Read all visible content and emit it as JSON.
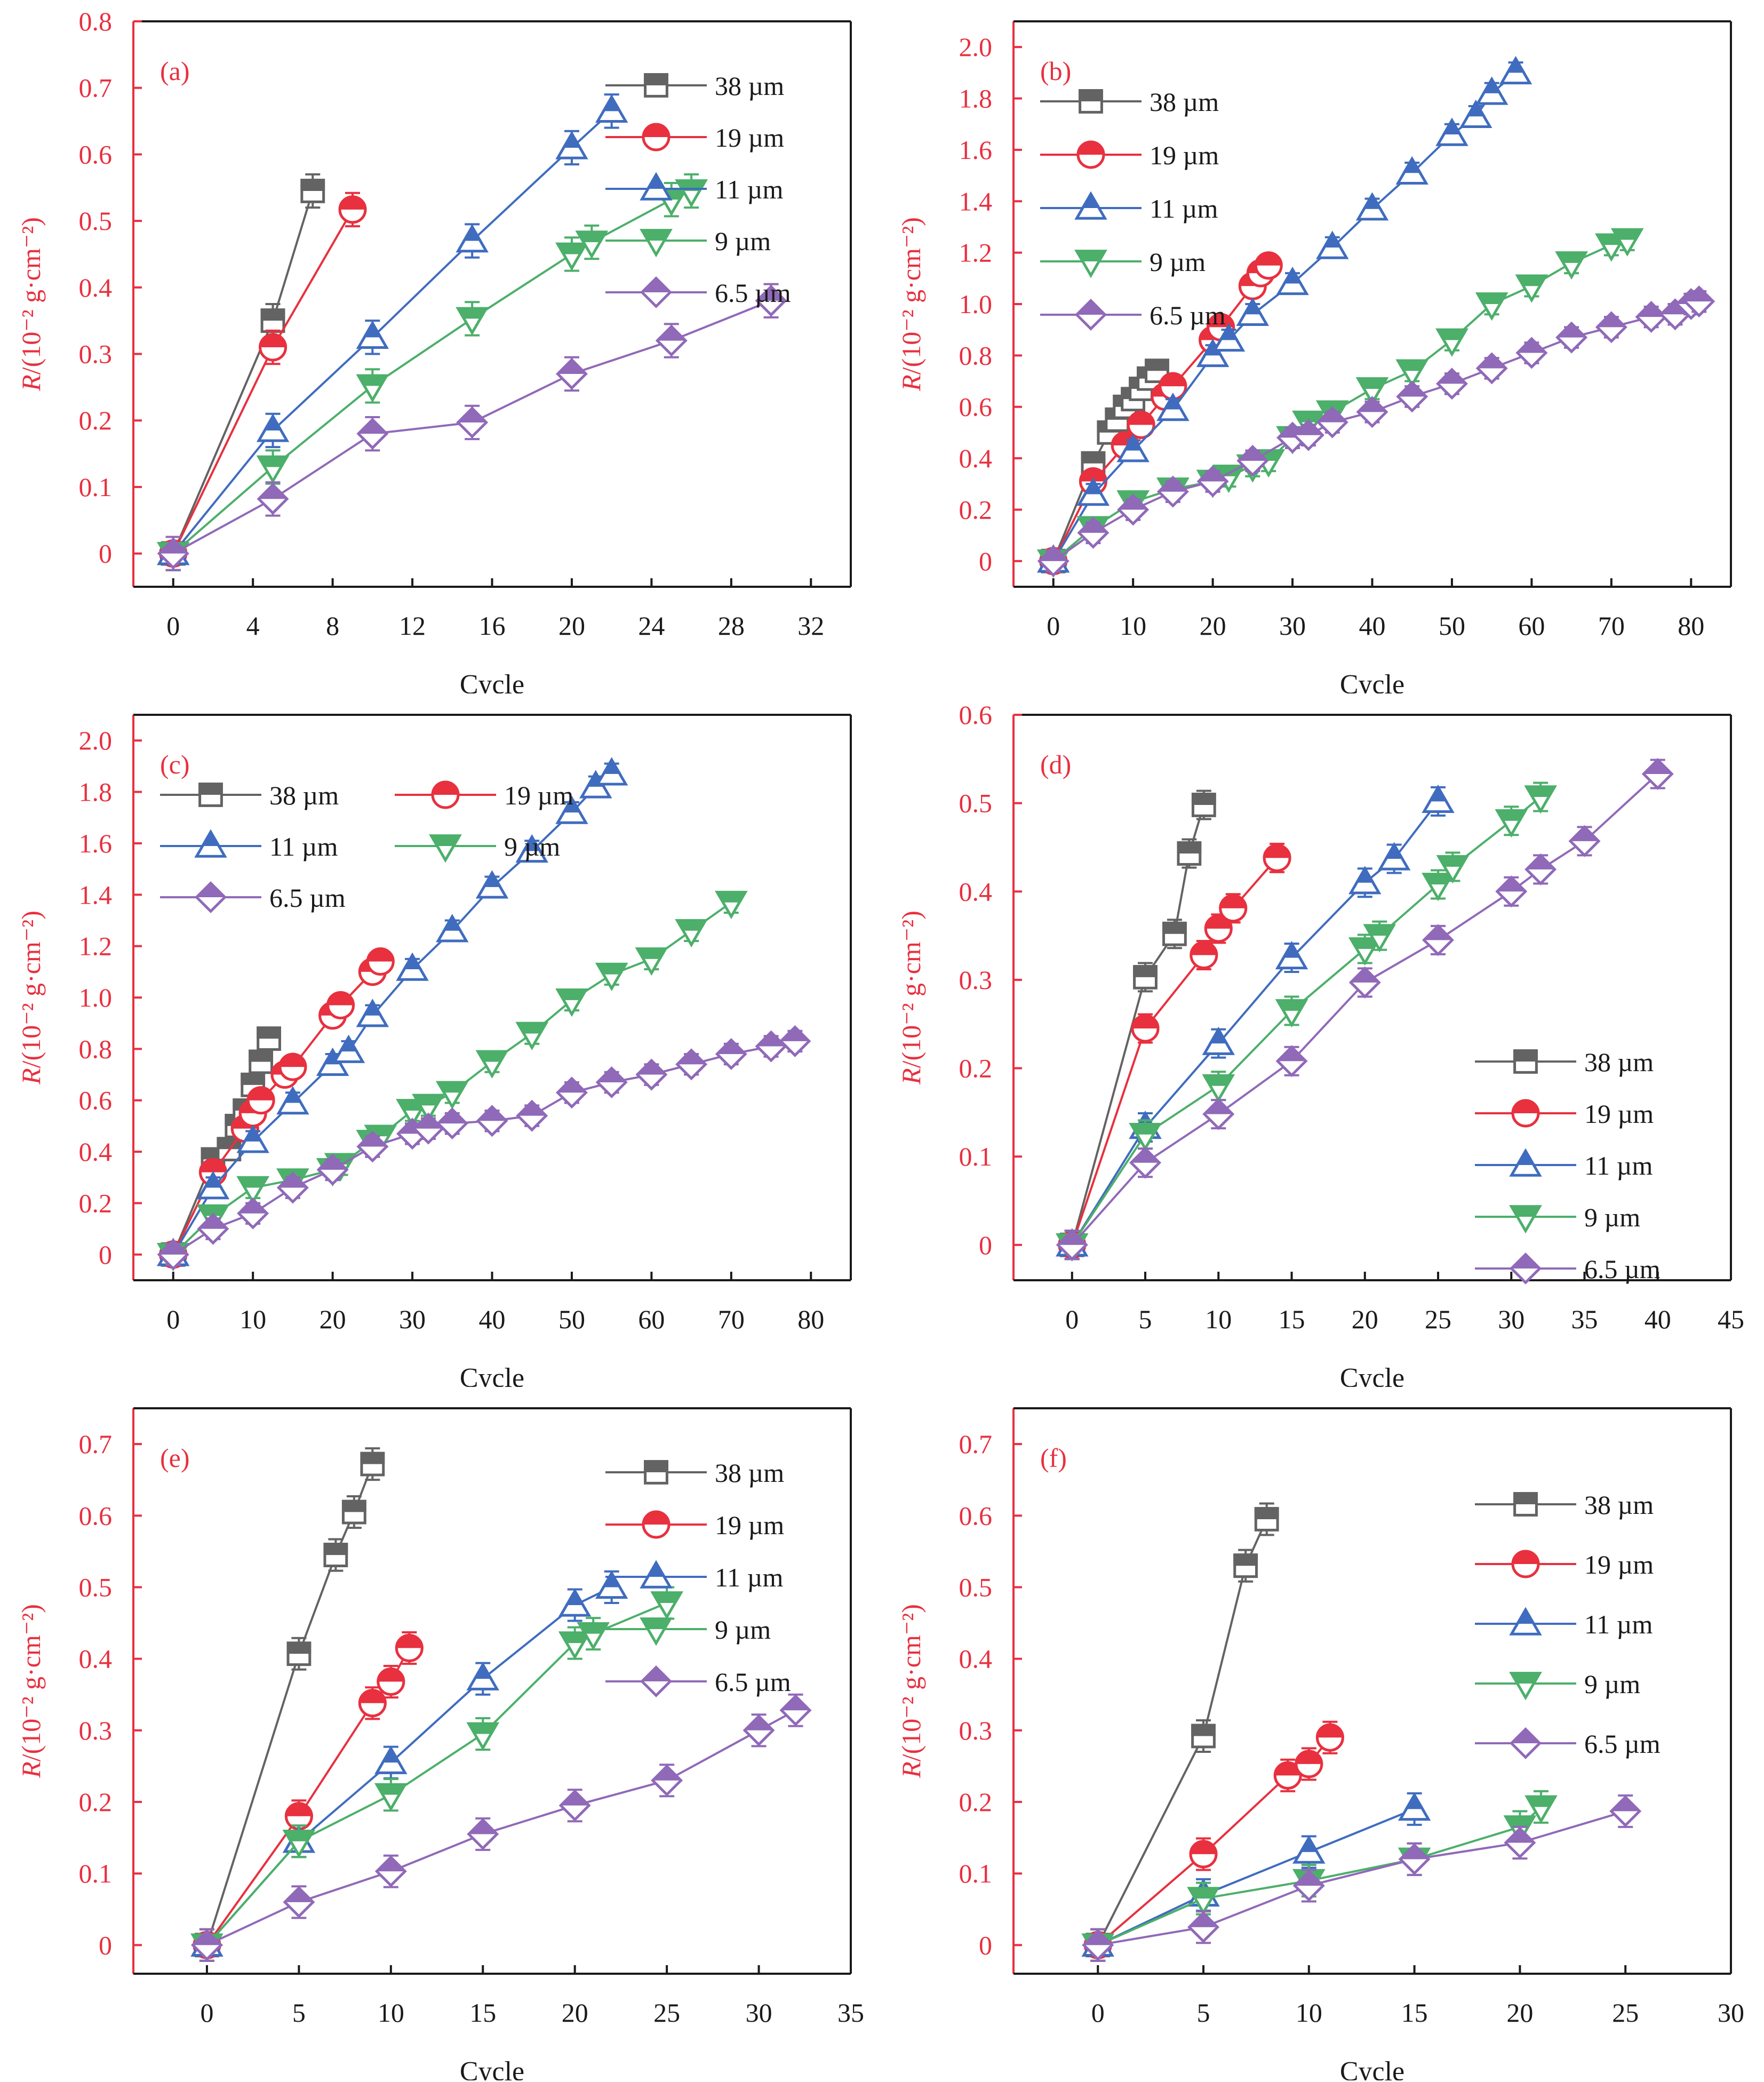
{
  "colors": {
    "38 µm": "#636363",
    "19 µm": "#e8303f",
    "11 µm": "#3f6cbf",
    "9 µm": "#4caf6a",
    "6.5 µm": "#9069b8",
    "axis_label": "#e8303f",
    "axis": "#1a1a1a"
  },
  "series_names": [
    "38 µm",
    "19 µm",
    "11 µm",
    "9 µm",
    "6.5 µm"
  ],
  "chart_data": [
    {
      "type": "line",
      "panel": "(a)",
      "xlabel": "Cycle",
      "ylabel": "R/(10⁻² g·cm⁻²)",
      "xlim": [
        -2,
        34
      ],
      "ylim": [
        -0.05,
        0.8
      ],
      "xticks": [
        0,
        4,
        8,
        12,
        16,
        20,
        24,
        28,
        32
      ],
      "yticks": [
        0,
        0.1,
        0.2,
        0.3,
        0.4,
        0.5,
        0.6,
        0.7,
        0.8
      ],
      "ytick_labels": [
        "0",
        "0.1",
        "0.2",
        "0.3",
        "0.4",
        "0.5",
        "0.6",
        "0.7",
        "0.8"
      ],
      "legend": "top-right",
      "legend_cols": 1,
      "error": 0.025,
      "series": [
        {
          "name": "38 µm",
          "x": [
            0,
            5,
            7
          ],
          "y": [
            0,
            0.35,
            0.545
          ]
        },
        {
          "name": "19 µm",
          "x": [
            0,
            5,
            9
          ],
          "y": [
            0,
            0.31,
            0.517
          ]
        },
        {
          "name": "11 µm",
          "x": [
            0,
            5,
            10,
            15,
            20,
            22
          ],
          "y": [
            0,
            0.185,
            0.325,
            0.47,
            0.61,
            0.665
          ]
        },
        {
          "name": "9 µm",
          "x": [
            0,
            5,
            10,
            15,
            20,
            21,
            25,
            26
          ],
          "y": [
            0,
            0.13,
            0.252,
            0.353,
            0.45,
            0.468,
            0.532,
            0.545
          ]
        },
        {
          "name": "6.5 µm",
          "x": [
            0,
            5,
            10,
            15,
            20,
            25,
            30
          ],
          "y": [
            0,
            0.082,
            0.18,
            0.197,
            0.27,
            0.32,
            0.38
          ]
        }
      ]
    },
    {
      "type": "line",
      "panel": "(b)",
      "xlabel": "Cycle",
      "ylabel": "R/(10⁻² g·cm⁻²)",
      "xlim": [
        -5,
        85
      ],
      "ylim": [
        -0.1,
        2.1
      ],
      "xticks": [
        0,
        10,
        20,
        30,
        40,
        50,
        60,
        70,
        80
      ],
      "yticks": [
        0,
        0.2,
        0.4,
        0.6,
        0.8,
        1.0,
        1.2,
        1.4,
        1.6,
        1.8,
        2.0
      ],
      "ytick_labels": [
        "0",
        "0.2",
        "0.4",
        "0.6",
        "0.8",
        "1.0",
        "1.2",
        "1.4",
        "1.6",
        "1.8",
        "2.0"
      ],
      "legend": "top-left",
      "legend_cols": 1,
      "error": 0.04,
      "series": [
        {
          "name": "38 µm",
          "x": [
            0,
            5,
            7,
            8,
            9,
            10,
            11,
            12,
            13
          ],
          "y": [
            0,
            0.38,
            0.5,
            0.55,
            0.6,
            0.63,
            0.67,
            0.71,
            0.74
          ]
        },
        {
          "name": "19 µm",
          "x": [
            0,
            5,
            9,
            11,
            14,
            15,
            20,
            21,
            25,
            26,
            27
          ],
          "y": [
            0,
            0.31,
            0.45,
            0.53,
            0.64,
            0.68,
            0.86,
            0.91,
            1.07,
            1.12,
            1.15
          ]
        },
        {
          "name": "11 µm",
          "x": [
            0,
            5,
            10,
            15,
            20,
            22,
            25,
            30,
            35,
            40,
            45,
            50,
            53,
            55,
            58
          ],
          "y": [
            0,
            0.26,
            0.43,
            0.59,
            0.8,
            0.86,
            0.96,
            1.08,
            1.22,
            1.37,
            1.51,
            1.66,
            1.73,
            1.82,
            1.9
          ]
        },
        {
          "name": "9 µm",
          "x": [
            0,
            5,
            10,
            15,
            20,
            22,
            25,
            27,
            30,
            32,
            35,
            40,
            45,
            50,
            55,
            60,
            65,
            70,
            72
          ],
          "y": [
            0,
            0.13,
            0.23,
            0.28,
            0.31,
            0.33,
            0.37,
            0.39,
            0.48,
            0.54,
            0.58,
            0.67,
            0.74,
            0.86,
            1.0,
            1.07,
            1.16,
            1.23,
            1.25
          ]
        },
        {
          "name": "6.5 µm",
          "x": [
            0,
            5,
            10,
            15,
            20,
            25,
            30,
            32,
            35,
            40,
            45,
            50,
            55,
            60,
            65,
            70,
            75,
            78,
            80,
            81
          ],
          "y": [
            0,
            0.11,
            0.2,
            0.27,
            0.31,
            0.39,
            0.48,
            0.49,
            0.54,
            0.58,
            0.64,
            0.69,
            0.75,
            0.81,
            0.87,
            0.91,
            0.95,
            0.96,
            1.0,
            1.01
          ]
        }
      ]
    },
    {
      "type": "line",
      "panel": "(c)",
      "xlabel": "Cycle",
      "ylabel": "R/(10⁻² g·cm⁻²)",
      "xlim": [
        -5,
        85
      ],
      "ylim": [
        -0.1,
        2.1
      ],
      "xticks": [
        0,
        10,
        20,
        30,
        40,
        50,
        60,
        70,
        80
      ],
      "yticks": [
        0,
        0.2,
        0.4,
        0.6,
        0.8,
        1.0,
        1.2,
        1.4,
        1.6,
        1.8,
        2.0
      ],
      "ytick_labels": [
        "0",
        "0.2",
        "0.4",
        "0.6",
        "0.8",
        "1.0",
        "1.2",
        "1.4",
        "1.6",
        "1.8",
        "2.0"
      ],
      "legend": "top-left",
      "legend_cols": 2,
      "error": 0.04,
      "series": [
        {
          "name": "38 µm",
          "x": [
            0,
            5,
            7,
            8,
            9,
            10,
            11,
            12
          ],
          "y": [
            0,
            0.37,
            0.41,
            0.5,
            0.56,
            0.66,
            0.75,
            0.84
          ]
        },
        {
          "name": "19 µm",
          "x": [
            0,
            5,
            9,
            10,
            11,
            14,
            15,
            20,
            21,
            25,
            26
          ],
          "y": [
            0,
            0.32,
            0.49,
            0.55,
            0.6,
            0.7,
            0.73,
            0.93,
            0.97,
            1.1,
            1.14
          ]
        },
        {
          "name": "11 µm",
          "x": [
            0,
            5,
            10,
            15,
            20,
            22,
            25,
            30,
            35,
            40,
            45,
            50,
            53,
            55
          ],
          "y": [
            0,
            0.26,
            0.44,
            0.59,
            0.74,
            0.79,
            0.93,
            1.11,
            1.26,
            1.43,
            1.57,
            1.72,
            1.82,
            1.87
          ]
        },
        {
          "name": "9 µm",
          "x": [
            0,
            5,
            10,
            15,
            20,
            21,
            25,
            26,
            30,
            32,
            35,
            40,
            45,
            50,
            55,
            60,
            65,
            70
          ],
          "y": [
            0,
            0.15,
            0.26,
            0.29,
            0.33,
            0.35,
            0.44,
            0.46,
            0.56,
            0.58,
            0.63,
            0.75,
            0.86,
            0.99,
            1.09,
            1.15,
            1.26,
            1.37
          ]
        },
        {
          "name": "6.5 µm",
          "x": [
            0,
            5,
            10,
            15,
            20,
            25,
            30,
            32,
            35,
            40,
            45,
            50,
            55,
            60,
            65,
            70,
            75,
            78
          ],
          "y": [
            0,
            0.1,
            0.16,
            0.26,
            0.33,
            0.42,
            0.47,
            0.49,
            0.51,
            0.52,
            0.54,
            0.63,
            0.67,
            0.7,
            0.74,
            0.78,
            0.81,
            0.83
          ]
        }
      ]
    },
    {
      "type": "line",
      "panel": "(d)",
      "xlabel": "Cycle",
      "ylabel": "R/(10⁻² g·cm⁻²)",
      "xlim": [
        -4,
        45
      ],
      "ylim": [
        -0.04,
        0.6
      ],
      "xticks": [
        0,
        5,
        10,
        15,
        20,
        25,
        30,
        35,
        40,
        45
      ],
      "yticks": [
        0,
        0.1,
        0.2,
        0.3,
        0.4,
        0.5,
        0.6
      ],
      "ytick_labels": [
        "0",
        "0.1",
        "0.2",
        "0.3",
        "0.4",
        "0.5",
        "0.6"
      ],
      "legend": "right",
      "legend_cols": 1,
      "error": 0.016,
      "series": [
        {
          "name": "38 µm",
          "x": [
            0,
            5,
            7,
            8,
            9
          ],
          "y": [
            0,
            0.303,
            0.352,
            0.443,
            0.498
          ]
        },
        {
          "name": "19 µm",
          "x": [
            0,
            5,
            9,
            10,
            11,
            14
          ],
          "y": [
            0,
            0.245,
            0.328,
            0.358,
            0.381,
            0.438
          ]
        },
        {
          "name": "11 µm",
          "x": [
            0,
            5,
            10,
            15,
            20,
            22,
            25
          ],
          "y": [
            0,
            0.133,
            0.228,
            0.325,
            0.41,
            0.437,
            0.502
          ]
        },
        {
          "name": "9 µm",
          "x": [
            0,
            5,
            10,
            15,
            20,
            21,
            25,
            26,
            30,
            32
          ],
          "y": [
            0,
            0.125,
            0.18,
            0.265,
            0.335,
            0.35,
            0.408,
            0.428,
            0.48,
            0.507
          ]
        },
        {
          "name": "6.5 µm",
          "x": [
            0,
            5,
            10,
            15,
            20,
            25,
            30,
            32,
            35,
            40
          ],
          "y": [
            0,
            0.093,
            0.148,
            0.208,
            0.297,
            0.345,
            0.4,
            0.425,
            0.457,
            0.533
          ]
        }
      ]
    },
    {
      "type": "line",
      "panel": "(e)",
      "xlabel": "Cycle",
      "ylabel": "R/(10⁻² g·cm⁻²)",
      "xlim": [
        -4,
        35
      ],
      "ylim": [
        -0.04,
        0.75
      ],
      "xticks": [
        0,
        5,
        10,
        15,
        20,
        25,
        30,
        35
      ],
      "yticks": [
        0,
        0.1,
        0.2,
        0.3,
        0.4,
        0.5,
        0.6,
        0.7
      ],
      "ytick_labels": [
        "0",
        "0.1",
        "0.2",
        "0.3",
        "0.4",
        "0.5",
        "0.6",
        "0.7"
      ],
      "legend": "top-right",
      "legend_cols": 1,
      "error": 0.022,
      "series": [
        {
          "name": "38 µm",
          "x": [
            0,
            5,
            7,
            8,
            9
          ],
          "y": [
            0,
            0.407,
            0.545,
            0.605,
            0.672
          ]
        },
        {
          "name": "19 µm",
          "x": [
            0,
            5,
            9,
            10,
            11
          ],
          "y": [
            0,
            0.18,
            0.338,
            0.368,
            0.415
          ]
        },
        {
          "name": "11 µm",
          "x": [
            0,
            5,
            10,
            15,
            20,
            22
          ],
          "y": [
            0,
            0.145,
            0.255,
            0.372,
            0.475,
            0.5
          ]
        },
        {
          "name": "9 µm",
          "x": [
            0,
            5,
            10,
            15,
            20,
            21,
            25
          ],
          "y": [
            0,
            0.145,
            0.21,
            0.295,
            0.422,
            0.435,
            0.478
          ]
        },
        {
          "name": "6.5 µm",
          "x": [
            0,
            5,
            10,
            15,
            20,
            25,
            30,
            32
          ],
          "y": [
            0,
            0.06,
            0.103,
            0.155,
            0.195,
            0.23,
            0.3,
            0.328
          ]
        }
      ]
    },
    {
      "type": "line",
      "panel": "(f)",
      "xlabel": "Cycle",
      "ylabel": "R/(10⁻² g·cm⁻²)",
      "xlim": [
        -4,
        30
      ],
      "ylim": [
        -0.04,
        0.75
      ],
      "xticks": [
        0,
        5,
        10,
        15,
        20,
        25,
        30
      ],
      "yticks": [
        0,
        0.1,
        0.2,
        0.3,
        0.4,
        0.5,
        0.6,
        0.7
      ],
      "ytick_labels": [
        "0",
        "0.1",
        "0.2",
        "0.3",
        "0.4",
        "0.5",
        "0.6",
        "0.7"
      ],
      "legend": "right",
      "legend_cols": 1,
      "error": 0.022,
      "series": [
        {
          "name": "38 µm",
          "x": [
            0,
            5,
            7,
            8
          ],
          "y": [
            0,
            0.292,
            0.53,
            0.595
          ]
        },
        {
          "name": "19 µm",
          "x": [
            0,
            5,
            9,
            10,
            11
          ],
          "y": [
            0,
            0.127,
            0.237,
            0.253,
            0.29
          ]
        },
        {
          "name": "11 µm",
          "x": [
            0,
            5,
            10,
            15
          ],
          "y": [
            0,
            0.07,
            0.13,
            0.19
          ]
        },
        {
          "name": "9 µm",
          "x": [
            0,
            5,
            10,
            15,
            20,
            21
          ],
          "y": [
            0,
            0.065,
            0.09,
            0.12,
            0.165,
            0.193
          ]
        },
        {
          "name": "6.5 µm",
          "x": [
            0,
            5,
            10,
            15,
            20,
            25
          ],
          "y": [
            0,
            0.025,
            0.083,
            0.12,
            0.143,
            0.187
          ]
        }
      ]
    }
  ]
}
